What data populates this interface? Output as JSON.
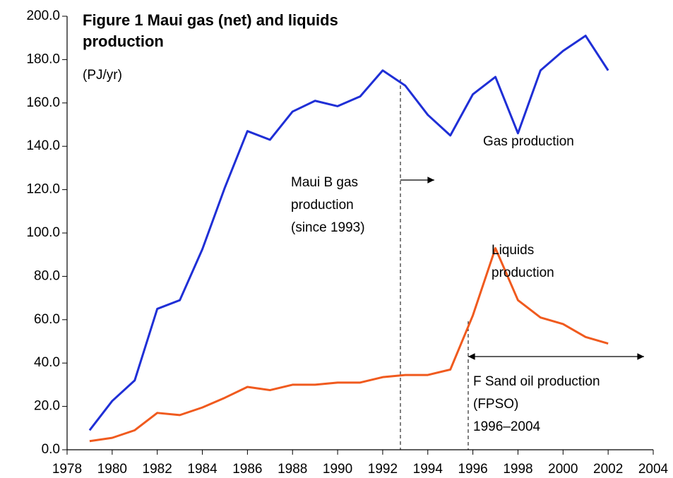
{
  "chart_data": {
    "type": "line",
    "title": [
      "Figure 1  Maui gas (net) and liquids",
      "production"
    ],
    "subtitle": "(PJ/yr)",
    "x": [
      1979,
      1980,
      1981,
      1982,
      1983,
      1984,
      1985,
      1986,
      1987,
      1988,
      1989,
      1990,
      1991,
      1992,
      1993,
      1994,
      1995,
      1996,
      1997,
      1998,
      1999,
      2000,
      2001,
      2002
    ],
    "series": [
      {
        "name": "Gas production",
        "color": "#1f2fd6",
        "values": [
          9,
          22.5,
          32,
          65,
          69,
          92.5,
          121,
          147,
          143,
          156,
          161,
          158.5,
          163,
          175,
          168,
          154.5,
          145,
          164,
          172,
          146,
          175,
          184,
          191,
          175
        ]
      },
      {
        "name": "Liquids production",
        "color": "#f05a1e",
        "values": [
          4,
          5.5,
          9,
          17,
          16,
          19.5,
          24,
          29,
          27.5,
          30,
          30,
          31,
          31,
          33.5,
          34.5,
          34.5,
          37,
          62,
          93,
          69,
          61,
          58,
          52,
          49
        ]
      }
    ],
    "xlim": [
      1978,
      2004
    ],
    "xticks": [
      1978,
      1980,
      1982,
      1984,
      1986,
      1988,
      1990,
      1992,
      1994,
      1996,
      1998,
      2000,
      2002,
      2004
    ],
    "ylim": [
      0,
      200
    ],
    "yticks": [
      {
        "value": 0,
        "label": "0.0"
      },
      {
        "value": 20,
        "label": "20.0"
      },
      {
        "value": 40,
        "label": "40.0"
      },
      {
        "value": 60,
        "label": "60.0"
      },
      {
        "value": 80,
        "label": "80.0"
      },
      {
        "value": 100,
        "label": "100.0"
      },
      {
        "value": 120,
        "label": "120.0"
      },
      {
        "value": 140,
        "label": "140.0"
      },
      {
        "value": 160,
        "label": "160.0"
      },
      {
        "value": 180,
        "label": "180.0"
      },
      {
        "value": 200,
        "label": "200.0"
      }
    ],
    "annotations": [
      {
        "lines": [
          "Maui B gas",
          "production",
          "(since 1993)"
        ]
      },
      {
        "lines": [
          "Gas production"
        ]
      },
      {
        "lines": [
          "Liquids",
          "production"
        ]
      },
      {
        "lines": [
          "F Sand oil production",
          "(FPSO)",
          "1996–2004"
        ]
      }
    ]
  }
}
